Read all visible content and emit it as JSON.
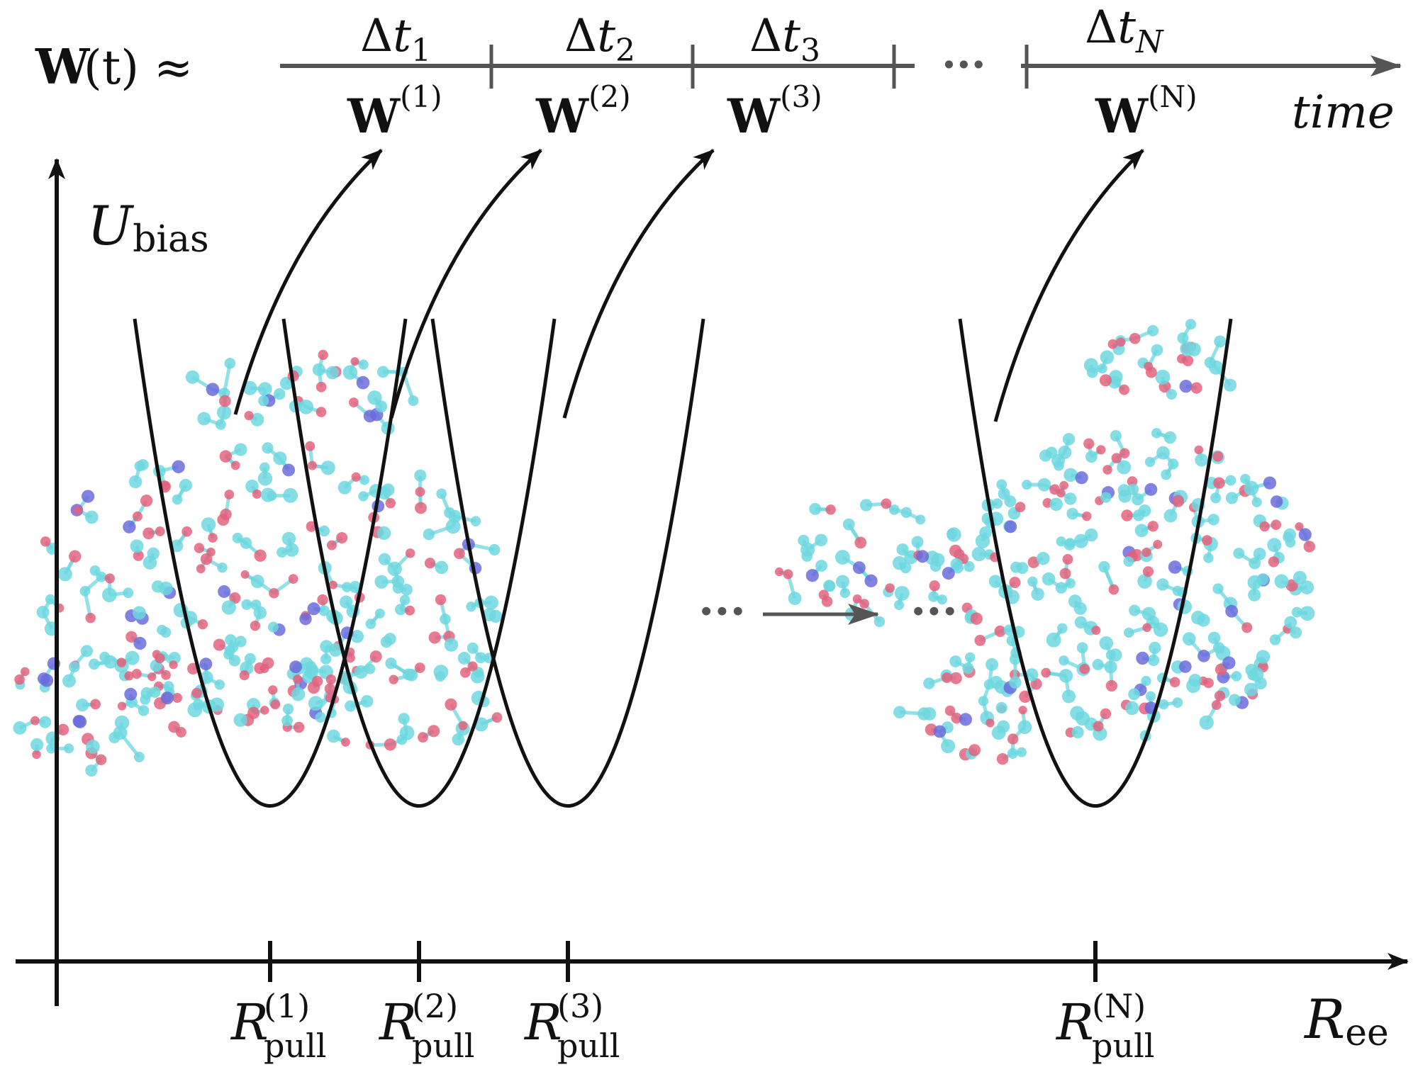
{
  "header": {
    "equation_W": "W",
    "equation_rest": "(t) ≈",
    "time_label": "time",
    "ellipsis": "···",
    "windows": [
      {
        "delta": "Δ",
        "t": "t",
        "sub": "1",
        "weight": "W",
        "sup": "(1)"
      },
      {
        "delta": "Δ",
        "t": "t",
        "sub": "2",
        "weight": "W",
        "sup": "(2)"
      },
      {
        "delta": "Δ",
        "t": "t",
        "sub": "3",
        "weight": "W",
        "sup": "(3)"
      },
      {
        "delta": "Δ",
        "t": "t",
        "sub": "N",
        "weight": "W",
        "sup": "(N)"
      }
    ]
  },
  "axes": {
    "y_label_main": "U",
    "y_label_sub": "bias",
    "x_label_main": "R",
    "x_label_sub": "ee"
  },
  "pull_points": [
    {
      "main": "R",
      "sup": "(1)",
      "sub": "pull"
    },
    {
      "main": "R",
      "sup": "(2)",
      "sub": "pull"
    },
    {
      "main": "R",
      "sup": "(3)",
      "sub": "pull"
    },
    {
      "main": "R",
      "sup": "(N)",
      "sub": "pull"
    }
  ],
  "middle": {
    "ellipsis_left": "···",
    "ellipsis_right": "···"
  },
  "colors": {
    "ink": "#111111",
    "grey": "#555555",
    "carbon": "#5fd3dc",
    "oxygen": "#e0506e",
    "nitrogen": "#5a5ad8"
  }
}
